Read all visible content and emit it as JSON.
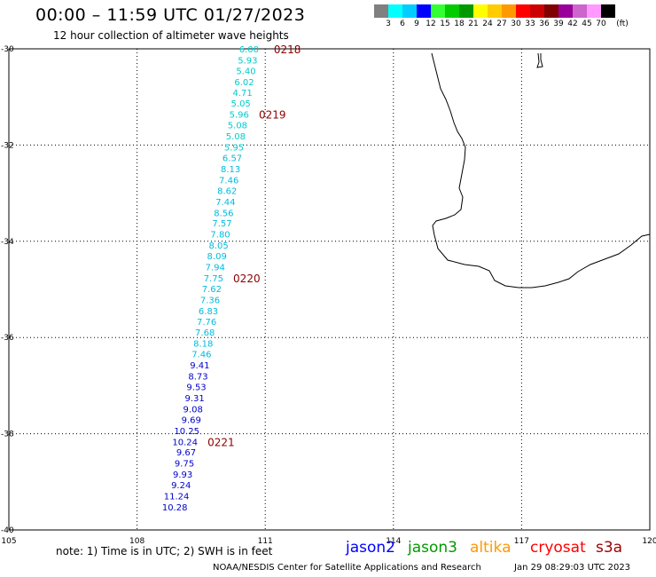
{
  "header": {
    "title": "00:00 – 11:59 UTC 01/27/2023",
    "subtitle": "12 hour collection of altimeter wave heights"
  },
  "legend": {
    "colors": [
      "#808080",
      "#00ffff",
      "#00ccff",
      "#0000ff",
      "#33ff33",
      "#00cc00",
      "#009900",
      "#ffff00",
      "#ffcc00",
      "#ff9900",
      "#ff0000",
      "#cc0000",
      "#800000",
      "#990099",
      "#cc66cc",
      "#ff99ff",
      "#000000"
    ],
    "labels": [
      "3",
      "6",
      "9",
      "12",
      "15",
      "18",
      "21",
      "24",
      "27",
      "30",
      "33",
      "36",
      "39",
      "42",
      "45",
      "70",
      "(ft)"
    ]
  },
  "map": {
    "lat_labels": [
      "-30",
      "-32",
      "-34",
      "-36",
      "-38",
      "-40"
    ],
    "lon_labels": [
      "105",
      "108",
      "111",
      "114",
      "117",
      "120"
    ],
    "observations": [
      {
        "lat": -30.0,
        "lon": 110.85,
        "value": "6.00",
        "color": "#00cccc"
      },
      {
        "lat": -30.23,
        "lon": 110.82,
        "value": "5.93",
        "color": "#00cccc"
      },
      {
        "lat": -30.45,
        "lon": 110.78,
        "value": "5.40",
        "color": "#00cccc"
      },
      {
        "lat": -30.68,
        "lon": 110.74,
        "value": "6.02",
        "color": "#00cccc"
      },
      {
        "lat": -30.9,
        "lon": 110.7,
        "value": "4.71",
        "color": "#00cccc"
      },
      {
        "lat": -31.13,
        "lon": 110.66,
        "value": "5.05",
        "color": "#00cccc"
      },
      {
        "lat": -31.36,
        "lon": 110.62,
        "value": "5.96",
        "color": "#00cccc"
      },
      {
        "lat": -31.58,
        "lon": 110.58,
        "value": "5.08",
        "color": "#00cccc"
      },
      {
        "lat": -31.81,
        "lon": 110.54,
        "value": "5.08",
        "color": "#00cccc"
      },
      {
        "lat": -32.04,
        "lon": 110.5,
        "value": "5.95",
        "color": "#00cccc"
      },
      {
        "lat": -32.26,
        "lon": 110.46,
        "value": "6.57",
        "color": "#00bbdd"
      },
      {
        "lat": -32.49,
        "lon": 110.42,
        "value": "8.13",
        "color": "#00bbdd"
      },
      {
        "lat": -32.72,
        "lon": 110.38,
        "value": "7.46",
        "color": "#00bbdd"
      },
      {
        "lat": -32.94,
        "lon": 110.34,
        "value": "8.62",
        "color": "#00bbdd"
      },
      {
        "lat": -33.17,
        "lon": 110.3,
        "value": "7.44",
        "color": "#00bbdd"
      },
      {
        "lat": -33.4,
        "lon": 110.26,
        "value": "8.56",
        "color": "#00bbdd"
      },
      {
        "lat": -33.62,
        "lon": 110.22,
        "value": "7.57",
        "color": "#00bbdd"
      },
      {
        "lat": -33.85,
        "lon": 110.18,
        "value": "7.80",
        "color": "#00bbdd"
      },
      {
        "lat": -34.08,
        "lon": 110.14,
        "value": "8.05",
        "color": "#00bbdd"
      },
      {
        "lat": -34.3,
        "lon": 110.1,
        "value": "8.09",
        "color": "#00bbdd"
      },
      {
        "lat": -34.53,
        "lon": 110.06,
        "value": "7.94",
        "color": "#00bbdd"
      },
      {
        "lat": -34.76,
        "lon": 110.02,
        "value": "7.75",
        "color": "#00bbdd"
      },
      {
        "lat": -34.98,
        "lon": 109.98,
        "value": "7.62",
        "color": "#00bbdd"
      },
      {
        "lat": -35.21,
        "lon": 109.94,
        "value": "7.36",
        "color": "#00bbdd"
      },
      {
        "lat": -35.44,
        "lon": 109.9,
        "value": "6.83",
        "color": "#00bbdd"
      },
      {
        "lat": -35.66,
        "lon": 109.86,
        "value": "7.76",
        "color": "#00bbdd"
      },
      {
        "lat": -35.89,
        "lon": 109.82,
        "value": "7.68",
        "color": "#00bbdd"
      },
      {
        "lat": -36.12,
        "lon": 109.78,
        "value": "8.18",
        "color": "#00bbdd"
      },
      {
        "lat": -36.34,
        "lon": 109.74,
        "value": "7.46",
        "color": "#00bbdd"
      },
      {
        "lat": -36.57,
        "lon": 109.7,
        "value": "9.41",
        "color": "#0000cc"
      },
      {
        "lat": -36.8,
        "lon": 109.66,
        "value": "8.73",
        "color": "#0000cc"
      },
      {
        "lat": -37.02,
        "lon": 109.62,
        "value": "9.53",
        "color": "#0000cc"
      },
      {
        "lat": -37.25,
        "lon": 109.58,
        "value": "9.31",
        "color": "#0000cc"
      },
      {
        "lat": -37.48,
        "lon": 109.54,
        "value": "9.08",
        "color": "#0000cc"
      },
      {
        "lat": -37.7,
        "lon": 109.5,
        "value": "9.69",
        "color": "#0000cc"
      },
      {
        "lat": -37.93,
        "lon": 109.46,
        "value": "10.25",
        "color": "#0000cc"
      },
      {
        "lat": -38.16,
        "lon": 109.42,
        "value": "10.24",
        "color": "#0000cc"
      },
      {
        "lat": -38.38,
        "lon": 109.38,
        "value": "9.67",
        "color": "#0000cc"
      },
      {
        "lat": -38.61,
        "lon": 109.34,
        "value": "9.75",
        "color": "#0000cc"
      },
      {
        "lat": -38.84,
        "lon": 109.3,
        "value": "9.93",
        "color": "#0000cc"
      },
      {
        "lat": -39.06,
        "lon": 109.26,
        "value": "9.24",
        "color": "#0000cc"
      },
      {
        "lat": -39.29,
        "lon": 109.22,
        "value": "11.24",
        "color": "#0000cc"
      },
      {
        "lat": -39.52,
        "lon": 109.18,
        "value": "10.28",
        "color": "#0000cc"
      }
    ],
    "time_marks": [
      {
        "lat": -30.0,
        "lon": 111.2,
        "label": "0218"
      },
      {
        "lat": -31.36,
        "lon": 110.85,
        "label": "0219"
      },
      {
        "lat": -34.76,
        "lon": 110.25,
        "label": "0220"
      },
      {
        "lat": -38.16,
        "lon": 109.65,
        "label": "0221"
      }
    ]
  },
  "footer": {
    "note": "note: 1) Time is in UTC; 2) SWH is in feet",
    "satellites": [
      {
        "label": "jason2",
        "color": "#0000ff"
      },
      {
        "label": "jason3",
        "color": "#009900"
      },
      {
        "label": "altika",
        "color": "#ff9900"
      },
      {
        "label": "cryosat",
        "color": "#ff0000"
      },
      {
        "label": "s3a",
        "color": "#990000"
      }
    ],
    "credit": "NOAA/NESDIS Center for Satellite Applications and Research",
    "timestamp": "Jan 29 08:29:03 UTC 2023"
  }
}
